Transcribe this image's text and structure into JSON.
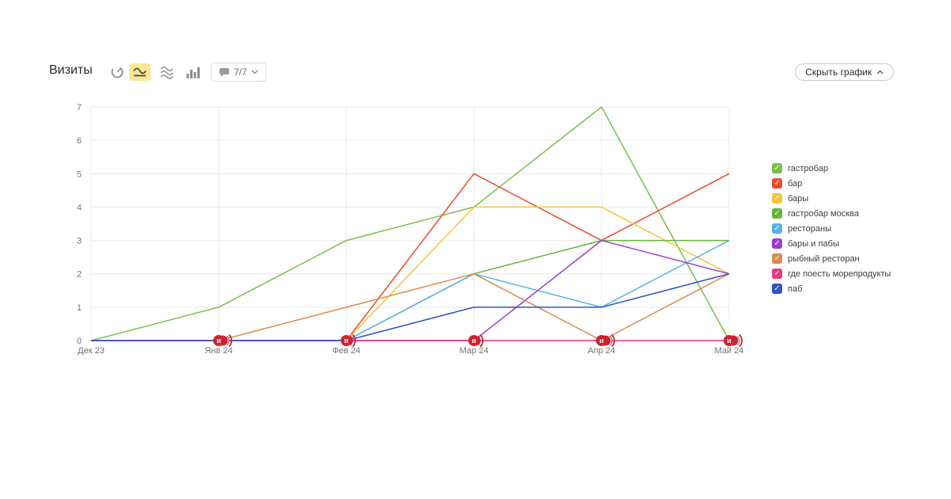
{
  "header": {
    "title": "Визиты",
    "metrics_selector": "7/7",
    "hide_chart_label": "Скрыть график"
  },
  "chart_data": {
    "type": "line",
    "title": "Визиты",
    "categories": [
      "Дек 23",
      "Янв 24",
      "Фев 24",
      "Мар 24",
      "Апр 24",
      "Май 24"
    ],
    "ylim": [
      0,
      7
    ],
    "yticks": [
      0,
      1,
      2,
      3,
      4,
      5,
      6,
      7
    ],
    "grid": true,
    "legend_position": "right",
    "legend_check": "✓",
    "marker_letter": "и",
    "marker_color": "#ce2231",
    "series": [
      {
        "name": "гастробар",
        "color": "#77c04b",
        "values": [
          0,
          1,
          3,
          4,
          7,
          0
        ]
      },
      {
        "name": "бар",
        "color": "#ea4b2d",
        "values": [
          0,
          0,
          0,
          5,
          3,
          5
        ]
      },
      {
        "name": "бары",
        "color": "#f3c63a",
        "values": [
          0,
          0,
          0,
          4,
          4,
          2
        ]
      },
      {
        "name": "гастробар москва",
        "color": "#64b43c",
        "values": [
          0,
          0,
          0,
          2,
          3,
          3
        ]
      },
      {
        "name": "рестораны",
        "color": "#58b1e9",
        "values": [
          0,
          0,
          0,
          2,
          1,
          3
        ]
      },
      {
        "name": "бары и пабы",
        "color": "#9a3fd1",
        "values": [
          0,
          0,
          0,
          0,
          3,
          2
        ]
      },
      {
        "name": "рыбный ресторан",
        "color": "#dd8a4e",
        "values": [
          0,
          0,
          1,
          2,
          0,
          2
        ]
      },
      {
        "name": "где поесть морепродукты",
        "color": "#e8397c",
        "values": [
          0,
          0,
          0,
          0,
          0,
          0
        ]
      },
      {
        "name": "паб",
        "color": "#2d54c6",
        "values": [
          0,
          0,
          0,
          1,
          1,
          2
        ]
      }
    ],
    "event_markers": [
      {
        "month_index": 1,
        "count": 2
      },
      {
        "month_index": 2,
        "count": 1
      },
      {
        "month_index": 3,
        "count": 1
      },
      {
        "month_index": 4,
        "count": 2
      },
      {
        "month_index": 5,
        "count": 2
      }
    ]
  }
}
